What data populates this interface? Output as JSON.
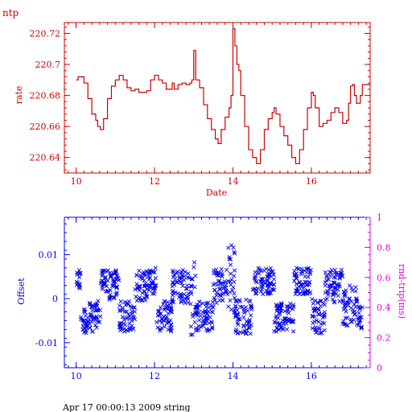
{
  "colors": {
    "rate": "#cc0000",
    "offset": "#0000ee",
    "rtt": "#dd00dd",
    "footer": "#000000"
  },
  "header": {
    "title": "ntp"
  },
  "footer": {
    "text": "Apr 17 00:00:13 2009 string"
  },
  "chart_data": [
    {
      "type": "line",
      "title": "",
      "xlabel": "Date",
      "ylabel": "rate",
      "xlim": [
        9.7,
        17.5
      ],
      "ylim": [
        220.63,
        220.727
      ],
      "xticks": [
        10,
        12,
        14,
        16
      ],
      "yticks": [
        220.64,
        220.66,
        220.68,
        220.7,
        220.72
      ],
      "ytick_labels": [
        "220.64",
        "220.66",
        "220.68",
        "220.7",
        "220.72"
      ],
      "series": [
        {
          "points": [
            [
              10.0,
              220.69
            ],
            [
              10.05,
              220.692
            ],
            [
              10.15,
              220.692
            ],
            [
              10.2,
              220.688
            ],
            [
              10.3,
              220.678
            ],
            [
              10.4,
              220.668
            ],
            [
              10.5,
              220.664
            ],
            [
              10.55,
              220.66
            ],
            [
              10.62,
              220.658
            ],
            [
              10.7,
              220.665
            ],
            [
              10.8,
              220.678
            ],
            [
              10.9,
              220.686
            ],
            [
              11.0,
              220.69
            ],
            [
              11.1,
              220.693
            ],
            [
              11.2,
              220.69
            ],
            [
              11.3,
              220.685
            ],
            [
              11.4,
              220.683
            ],
            [
              11.5,
              220.684
            ],
            [
              11.6,
              220.682
            ],
            [
              11.7,
              220.682
            ],
            [
              11.8,
              220.683
            ],
            [
              11.9,
              220.69
            ],
            [
              12.0,
              220.693
            ],
            [
              12.1,
              220.69
            ],
            [
              12.2,
              220.688
            ],
            [
              12.3,
              220.684
            ],
            [
              12.4,
              220.684
            ],
            [
              12.45,
              220.688
            ],
            [
              12.5,
              220.684
            ],
            [
              12.6,
              220.687
            ],
            [
              12.7,
              220.688
            ],
            [
              12.8,
              220.687
            ],
            [
              12.9,
              220.688
            ],
            [
              12.95,
              220.69
            ],
            [
              13.0,
              220.709
            ],
            [
              13.05,
              220.69
            ],
            [
              13.15,
              220.685
            ],
            [
              13.25,
              220.674
            ],
            [
              13.35,
              220.665
            ],
            [
              13.45,
              220.658
            ],
            [
              13.55,
              220.652
            ],
            [
              13.62,
              220.649
            ],
            [
              13.7,
              220.658
            ],
            [
              13.8,
              220.666
            ],
            [
              13.9,
              220.672
            ],
            [
              13.95,
              220.68
            ],
            [
              14.0,
              220.723
            ],
            [
              14.05,
              220.712
            ],
            [
              14.1,
              220.7
            ],
            [
              14.15,
              220.696
            ],
            [
              14.2,
              220.68
            ],
            [
              14.3,
              220.66
            ],
            [
              14.4,
              220.645
            ],
            [
              14.5,
              220.64
            ],
            [
              14.6,
              220.636
            ],
            [
              14.7,
              220.645
            ],
            [
              14.8,
              220.658
            ],
            [
              14.9,
              220.665
            ],
            [
              15.0,
              220.669
            ],
            [
              15.05,
              220.672
            ],
            [
              15.1,
              220.668
            ],
            [
              15.2,
              220.66
            ],
            [
              15.3,
              220.654
            ],
            [
              15.4,
              220.648
            ],
            [
              15.5,
              220.64
            ],
            [
              15.6,
              220.636
            ],
            [
              15.7,
              220.645
            ],
            [
              15.8,
              220.658
            ],
            [
              15.9,
              220.672
            ],
            [
              16.0,
              220.682
            ],
            [
              16.05,
              220.68
            ],
            [
              16.1,
              220.672
            ],
            [
              16.2,
              220.66
            ],
            [
              16.3,
              220.662
            ],
            [
              16.4,
              220.664
            ],
            [
              16.5,
              220.669
            ],
            [
              16.6,
              220.672
            ],
            [
              16.7,
              220.669
            ],
            [
              16.8,
              220.662
            ],
            [
              16.9,
              220.664
            ],
            [
              16.95,
              220.675
            ],
            [
              17.0,
              220.686
            ],
            [
              17.05,
              220.687
            ],
            [
              17.1,
              220.68
            ],
            [
              17.15,
              220.675
            ],
            [
              17.2,
              220.675
            ],
            [
              17.25,
              220.68
            ],
            [
              17.3,
              220.687
            ],
            [
              17.5,
              220.687
            ]
          ]
        }
      ]
    },
    {
      "type": "scatter",
      "title": "",
      "xlabel": "",
      "ylabel": "Offset",
      "y2label": "rnd-trip(ms)",
      "xlim": [
        9.7,
        17.5
      ],
      "ylim": [
        -0.0157,
        0.0185
      ],
      "y2lim": [
        0,
        1
      ],
      "xticks": [
        10,
        12,
        14,
        16
      ],
      "yticks": [
        -0.01,
        0,
        0.01
      ],
      "ytick_labels": [
        "-0.01",
        "0",
        "0.01"
      ],
      "y2ticks": [
        0,
        0.2,
        0.4,
        0.6,
        0.8,
        1
      ],
      "y2tick_labels": [
        "0",
        "0.2",
        "0.4",
        "0.6",
        "0.8",
        "1"
      ],
      "marker": "x",
      "segments": [
        {
          "x": [
            10.0,
            10.12
          ],
          "center": 0.004,
          "spread": 0.0025
        },
        {
          "x": [
            10.12,
            10.32
          ],
          "center": -0.005,
          "spread": 0.0028
        },
        {
          "x": [
            10.32,
            10.62
          ],
          "center": -0.004,
          "spread": 0.0035
        },
        {
          "x": [
            10.62,
            10.8
          ],
          "center": 0.004,
          "spread": 0.0025
        },
        {
          "x": [
            10.8,
            11.1
          ],
          "center": 0.003,
          "spread": 0.0035
        },
        {
          "x": [
            11.1,
            11.5
          ],
          "center": -0.004,
          "spread": 0.0035
        },
        {
          "x": [
            11.5,
            11.82
          ],
          "center": 0.003,
          "spread": 0.0035
        },
        {
          "x": [
            11.82,
            12.05
          ],
          "center": 0.004,
          "spread": 0.003
        },
        {
          "x": [
            12.05,
            12.45
          ],
          "center": -0.004,
          "spread": 0.0035
        },
        {
          "x": [
            12.45,
            12.9
          ],
          "center": 0.003,
          "spread": 0.004
        },
        {
          "x": [
            12.9,
            13.05
          ],
          "center": 0.0,
          "spread": 0.009
        },
        {
          "x": [
            13.05,
            13.5
          ],
          "center": -0.004,
          "spread": 0.0035
        },
        {
          "x": [
            13.5,
            13.85
          ],
          "center": 0.003,
          "spread": 0.004
        },
        {
          "x": [
            13.85,
            14.05
          ],
          "center": 0.005,
          "spread": 0.009
        },
        {
          "x": [
            14.05,
            14.5
          ],
          "center": -0.004,
          "spread": 0.004
        },
        {
          "x": [
            14.5,
            15.05
          ],
          "center": 0.004,
          "spread": 0.003
        },
        {
          "x": [
            15.05,
            15.55
          ],
          "center": -0.004,
          "spread": 0.0035
        },
        {
          "x": [
            15.55,
            16.0
          ],
          "center": 0.004,
          "spread": 0.003
        },
        {
          "x": [
            16.0,
            16.35
          ],
          "center": -0.004,
          "spread": 0.004
        },
        {
          "x": [
            16.35,
            16.8
          ],
          "center": 0.003,
          "spread": 0.004
        },
        {
          "x": [
            16.8,
            17.2
          ],
          "center": -0.002,
          "spread": 0.005
        },
        {
          "x": [
            17.2,
            17.3
          ],
          "center": -0.004,
          "spread": 0.003
        }
      ]
    }
  ]
}
